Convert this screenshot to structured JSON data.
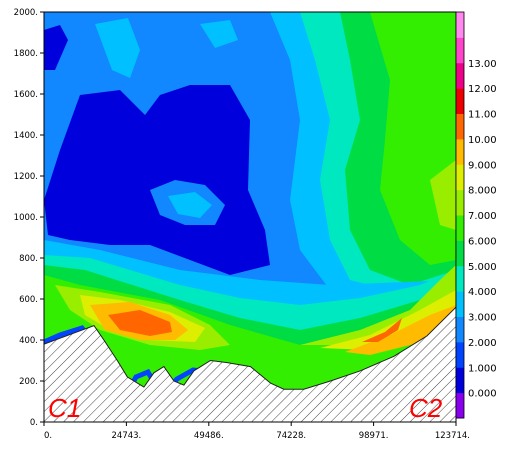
{
  "chart_data": {
    "type": "heatmap",
    "title": "",
    "xlabel": "",
    "ylabel": "",
    "x_ticks": [
      "0.",
      "24743.",
      "49486.",
      "74228.",
      "98971.",
      "123714."
    ],
    "y_ticks": [
      "0.",
      "200.",
      "400.",
      "600.",
      "800.",
      "1000.",
      "1200.",
      "1400.",
      "1600.",
      "1800.",
      "2000."
    ],
    "xlim": [
      0,
      123714
    ],
    "ylim": [
      0,
      2000
    ],
    "colorbar": {
      "labels": [
        "0.000",
        "1.000",
        "2.000",
        "3.000",
        "4.000",
        "5.000",
        "6.000",
        "7.000",
        "8.000",
        "9.000",
        "10.00",
        "11.00",
        "12.00",
        "13.00"
      ],
      "colors": [
        "#8800ee",
        "#0000dd",
        "#0044ff",
        "#1188ff",
        "#00c0ff",
        "#00e8c0",
        "#00dd44",
        "#33ee00",
        "#99ee00",
        "#ddee00",
        "#ffbb00",
        "#ff6600",
        "#ee0000",
        "#ee0088",
        "#ff44cc",
        "#ff88ee"
      ]
    },
    "terrain_profile": {
      "x": [
        0,
        10000,
        15000,
        18000,
        22000,
        25000,
        30000,
        33000,
        36000,
        39000,
        42000,
        45000,
        50000,
        55000,
        62000,
        68000,
        72000,
        78000,
        86000,
        95000,
        105000,
        115000,
        123714
      ],
      "y": [
        380,
        440,
        470,
        400,
        300,
        220,
        170,
        240,
        270,
        200,
        180,
        250,
        300,
        290,
        270,
        190,
        160,
        160,
        200,
        250,
        320,
        420,
        560
      ]
    },
    "endpoints": [
      "C1",
      "C2"
    ]
  }
}
